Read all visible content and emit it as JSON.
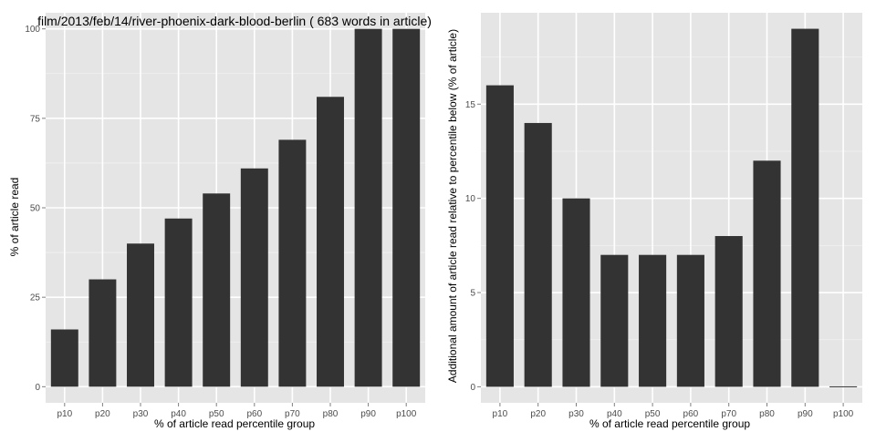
{
  "chart_data": [
    {
      "type": "bar",
      "title": "film/2013/feb/14/river-phoenix-dark-blood-berlin ( 683 words in article)",
      "xlabel": "% of article read percentile group",
      "ylabel": "% of article read",
      "categories": [
        "p10",
        "p20",
        "p30",
        "p40",
        "p50",
        "p60",
        "p70",
        "p80",
        "p90",
        "p100"
      ],
      "values": [
        16,
        30,
        40,
        47,
        54,
        61,
        69,
        81,
        100,
        100
      ],
      "ylim": [
        -4.5,
        104.5
      ],
      "yticks": [
        0,
        25,
        50,
        75,
        100
      ],
      "grid": true,
      "colors": {
        "panel": "#e5e5e5",
        "grid_major": "#ffffff",
        "grid_minor": "#f2f2f2",
        "bar": "#333333"
      }
    },
    {
      "type": "bar",
      "title": "",
      "xlabel": "% of article read percentile group",
      "ylabel": "Additional amount of article read relative to percentile below (% of article)",
      "categories": [
        "p10",
        "p20",
        "p30",
        "p40",
        "p50",
        "p60",
        "p70",
        "p80",
        "p90",
        "p100"
      ],
      "values": [
        16,
        14,
        10,
        7,
        7,
        7,
        8,
        12,
        19,
        0
      ],
      "ylim": [
        -0.85,
        19.85
      ],
      "yticks": [
        0,
        5,
        10,
        15
      ],
      "grid": true,
      "colors": {
        "panel": "#e5e5e5",
        "grid_major": "#ffffff",
        "grid_minor": "#f2f2f2",
        "bar": "#333333"
      }
    }
  ]
}
